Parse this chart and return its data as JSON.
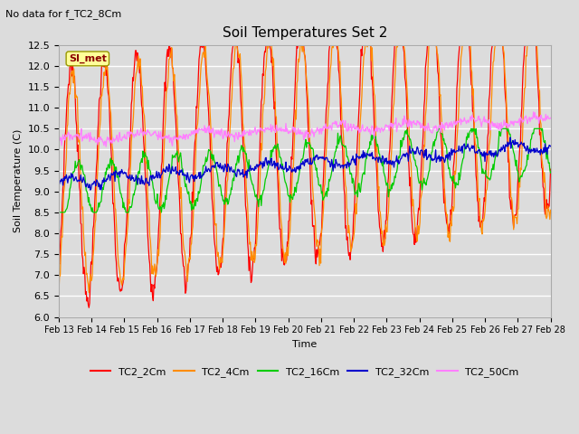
{
  "title": "Soil Temperatures Set 2",
  "subtitle": "No data for f_TC2_8Cm",
  "ylabel": "Soil Temperature (C)",
  "xlabel": "Time",
  "ylim": [
    6.0,
    12.5
  ],
  "yticks": [
    6.0,
    6.5,
    7.0,
    7.5,
    8.0,
    8.5,
    9.0,
    9.5,
    10.0,
    10.5,
    11.0,
    11.5,
    12.0,
    12.5
  ],
  "xtick_labels": [
    "Feb 13",
    "Feb 14",
    "Feb 15",
    "Feb 16",
    "Feb 17",
    "Feb 18",
    "Feb 19",
    "Feb 20",
    "Feb 21",
    "Feb 22",
    "Feb 23",
    "Feb 24",
    "Feb 25",
    "Feb 26",
    "Feb 27",
    "Feb 28"
  ],
  "series_colors": {
    "TC2_2Cm": "#FF0000",
    "TC2_4Cm": "#FF8C00",
    "TC2_16Cm": "#00CC00",
    "TC2_32Cm": "#0000CC",
    "TC2_50Cm": "#FF80FF"
  },
  "SI_met_box_color": "#FFFF99",
  "SI_met_text_color": "#8B0000",
  "background_color": "#DCDCDC",
  "grid_color": "#FFFFFF",
  "n_points": 720
}
